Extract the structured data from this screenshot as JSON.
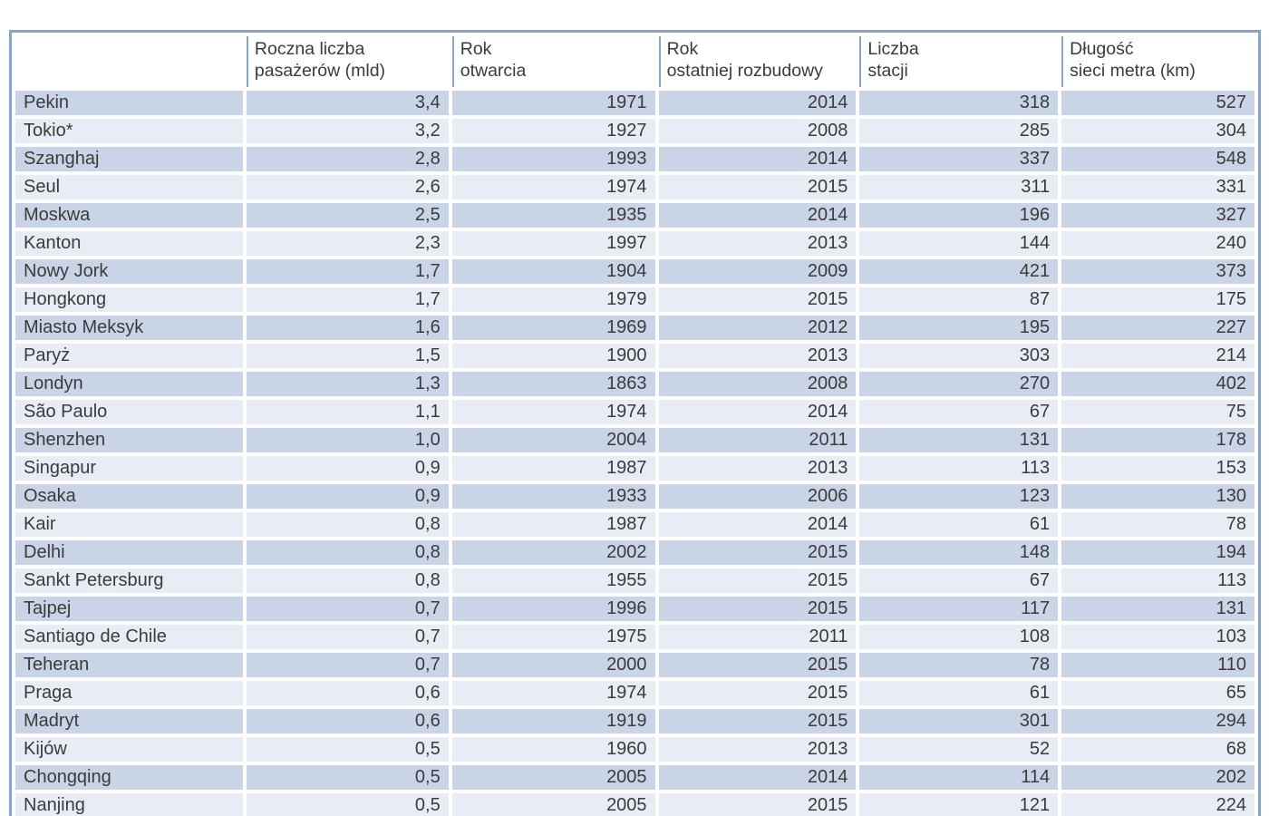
{
  "chart_data": {
    "type": "table",
    "title": "",
    "column_keys": [
      "city",
      "annual-passengers-mld",
      "year-opened",
      "year-last-expansion",
      "station-count",
      "network-length-km"
    ],
    "columns": [
      "",
      "Roczna liczba\npasażerów (mld)",
      "Rok\notwarcia",
      "Rok\nostatniej rozbudowy",
      "Liczba\nstacji",
      "Długość\nsieci metra (km)"
    ],
    "rows": [
      [
        "Pekin",
        "3,4",
        "1971",
        "2014",
        "318",
        "527"
      ],
      [
        "Tokio*",
        "3,2",
        "1927",
        "2008",
        "285",
        "304"
      ],
      [
        "Szanghaj",
        "2,8",
        "1993",
        "2014",
        "337",
        "548"
      ],
      [
        "Seul",
        "2,6",
        "1974",
        "2015",
        "311",
        "331"
      ],
      [
        "Moskwa",
        "2,5",
        "1935",
        "2014",
        "196",
        "327"
      ],
      [
        "Kanton",
        "2,3",
        "1997",
        "2013",
        "144",
        "240"
      ],
      [
        "Nowy Jork",
        "1,7",
        "1904",
        "2009",
        "421",
        "373"
      ],
      [
        "Hongkong",
        "1,7",
        "1979",
        "2015",
        "87",
        "175"
      ],
      [
        "Miasto Meksyk",
        "1,6",
        "1969",
        "2012",
        "195",
        "227"
      ],
      [
        "Paryż",
        "1,5",
        "1900",
        "2013",
        "303",
        "214"
      ],
      [
        "Londyn",
        "1,3",
        "1863",
        "2008",
        "270",
        "402"
      ],
      [
        "São Paulo",
        "1,1",
        "1974",
        "2014",
        "67",
        "75"
      ],
      [
        "Shenzhen",
        "1,0",
        "2004",
        "2011",
        "131",
        "178"
      ],
      [
        "Singapur",
        "0,9",
        "1987",
        "2013",
        "113",
        "153"
      ],
      [
        "Osaka",
        "0,9",
        "1933",
        "2006",
        "123",
        "130"
      ],
      [
        "Kair",
        "0,8",
        "1987",
        "2014",
        "61",
        "78"
      ],
      [
        "Delhi",
        "0,8",
        "2002",
        "2015",
        "148",
        "194"
      ],
      [
        "Sankt Petersburg",
        "0,8",
        "1955",
        "2015",
        "67",
        "113"
      ],
      [
        "Tajpej",
        "0,7",
        "1996",
        "2015",
        "117",
        "131"
      ],
      [
        "Santiago de Chile",
        "0,7",
        "1975",
        "2011",
        "108",
        "103"
      ],
      [
        "Teheran",
        "0,7",
        "2000",
        "2015",
        "78",
        "110"
      ],
      [
        "Praga",
        "0,6",
        "1974",
        "2015",
        "61",
        "65"
      ],
      [
        "Madryt",
        "0,6",
        "1919",
        "2015",
        "301",
        "294"
      ],
      [
        "Kijów",
        "0,5",
        "1960",
        "2013",
        "52",
        "68"
      ],
      [
        "Chongqing",
        "0,5",
        "2005",
        "2014",
        "114",
        "202"
      ],
      [
        "Nanjing",
        "0,5",
        "2005",
        "2015",
        "121",
        "224"
      ]
    ],
    "layout_hints": {
      "grid": "white-gaps-between-cells",
      "header_background": "#ffffff",
      "first_column_align": "left",
      "numeric_columns_align": "right",
      "last_row_clipped_at_bottom": true
    },
    "colors": {
      "row_dark": "#c9d4e7",
      "row_light": "#e8edf5",
      "table_border": "#8ba2c8",
      "text": "#3b3b3b",
      "page_background": "#ffffff"
    }
  }
}
